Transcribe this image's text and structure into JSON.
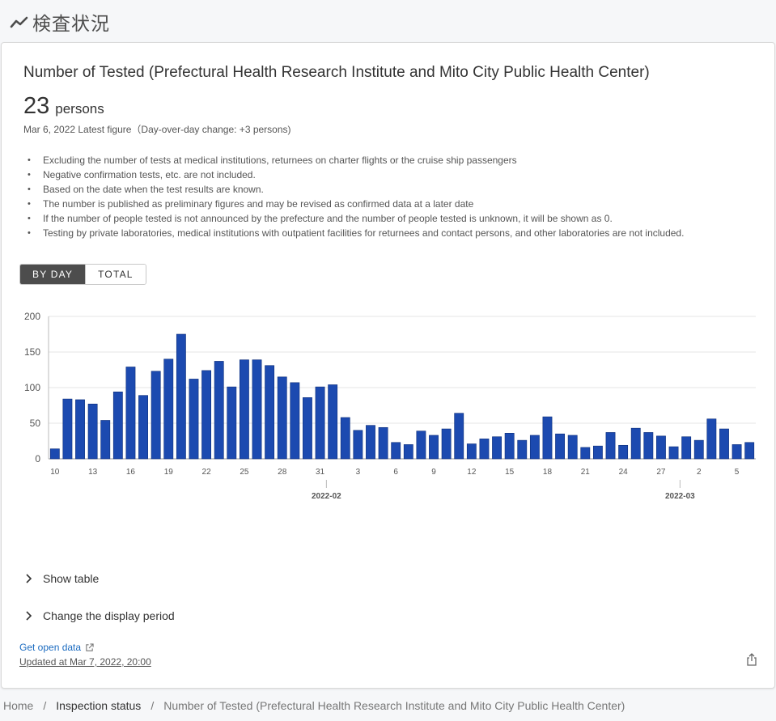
{
  "header": {
    "title": "検査状況",
    "icon": "trend-line-icon"
  },
  "card": {
    "title": "Number of Tested (Prefectural Health Research Institute and Mito City Public Health Center)",
    "figure_value": "23",
    "figure_unit": "persons",
    "date_line": "Mar 6, 2022 Latest figure（Day-over-day change: +3 persons)",
    "notes": [
      "Excluding the number of tests at medical institutions, returnees on charter flights or the cruise ship passengers",
      "Negative confirmation tests, etc. are not included.",
      "Based on the date when the test results are known.",
      "The number is published as preliminary figures and may be revised as confirmed data at a later date",
      "If the number of people tested is not announced by the prefecture and the number of people tested is unknown, it will be shown as 0.",
      "Testing by private laboratories, medical institutions with outpatient facilities for returnees and contact persons, and other laboratories are not included."
    ],
    "toggle": {
      "by_day": "BY DAY",
      "total": "TOTAL",
      "active": "by_day"
    },
    "show_table": "Show table",
    "change_period": "Change the display period",
    "open_data": "Get open data",
    "updated": "Updated at Mar 7, 2022, 20:00"
  },
  "breadcrumb": {
    "home": "Home",
    "section": "Inspection status",
    "current": "Number of Tested (Prefectural Health Research Institute and Mito City Public Health Center)",
    "separator": "/"
  },
  "colors": {
    "bar": "#1c4ab0",
    "bar_border": "#0d2e7a",
    "active_toggle": "#4d4d4d",
    "link": "#1b6bc0"
  },
  "chart_data": {
    "type": "bar",
    "ylim": [
      0,
      200
    ],
    "yticks": [
      0,
      50,
      100,
      150,
      200
    ],
    "grid": true,
    "categories": [
      "10",
      "11",
      "12",
      "13",
      "14",
      "15",
      "16",
      "17",
      "18",
      "19",
      "20",
      "21",
      "22",
      "23",
      "24",
      "25",
      "26",
      "27",
      "28",
      "29",
      "30",
      "31",
      "1",
      "2",
      "3",
      "4",
      "5",
      "6",
      "7",
      "8",
      "9",
      "10",
      "11",
      "12",
      "13",
      "14",
      "15",
      "16",
      "17",
      "18",
      "19",
      "20",
      "21",
      "22",
      "23",
      "24",
      "25",
      "26",
      "27",
      "28",
      "1",
      "2",
      "3",
      "4",
      "5",
      "6"
    ],
    "values": [
      14,
      84,
      83,
      77,
      54,
      94,
      129,
      89,
      123,
      140,
      175,
      112,
      124,
      137,
      101,
      139,
      139,
      131,
      115,
      107,
      86,
      101,
      104,
      58,
      40,
      47,
      44,
      23,
      20,
      39,
      33,
      42,
      64,
      21,
      28,
      31,
      36,
      26,
      33,
      59,
      35,
      33,
      16,
      18,
      37,
      19,
      43,
      37,
      32,
      17,
      31,
      26,
      56,
      42,
      20,
      23
    ],
    "xtick_labels": [
      {
        "index": 0,
        "label": "10"
      },
      {
        "index": 3,
        "label": "13"
      },
      {
        "index": 6,
        "label": "16"
      },
      {
        "index": 9,
        "label": "19"
      },
      {
        "index": 12,
        "label": "22"
      },
      {
        "index": 15,
        "label": "25"
      },
      {
        "index": 18,
        "label": "28"
      },
      {
        "index": 21,
        "label": "31"
      },
      {
        "index": 24,
        "label": "3"
      },
      {
        "index": 27,
        "label": "6"
      },
      {
        "index": 30,
        "label": "9"
      },
      {
        "index": 33,
        "label": "12"
      },
      {
        "index": 36,
        "label": "15"
      },
      {
        "index": 39,
        "label": "18"
      },
      {
        "index": 42,
        "label": "21"
      },
      {
        "index": 45,
        "label": "24"
      },
      {
        "index": 48,
        "label": "27"
      },
      {
        "index": 51,
        "label": "2"
      },
      {
        "index": 54,
        "label": "5"
      }
    ],
    "month_labels": [
      {
        "index": 22,
        "label": "2022-02"
      },
      {
        "index": 50,
        "label": "2022-03"
      }
    ]
  }
}
